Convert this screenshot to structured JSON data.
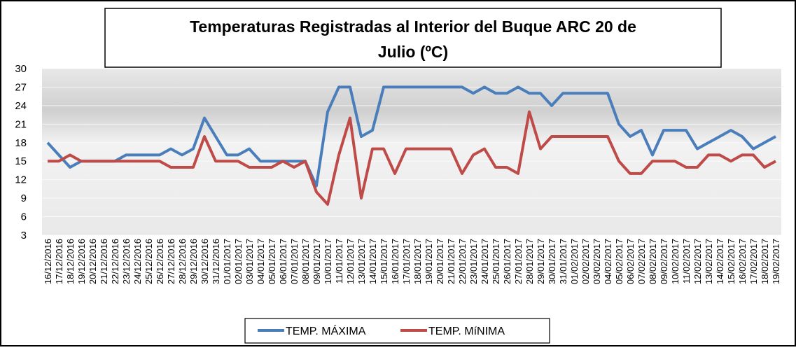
{
  "chart_data": {
    "type": "line",
    "title_lines": [
      "Temperaturas Registradas al Interior del Buque ARC 20 de",
      "Julio (ºC)"
    ],
    "categories": [
      "16/12/2016",
      "17/12/2016",
      "18/12/2016",
      "19/12/2016",
      "20/12/2016",
      "21/12/2016",
      "22/12/2016",
      "23/12/2016",
      "24/12/2016",
      "25/12/2016",
      "26/12/2016",
      "27/12/2016",
      "28/12/2016",
      "29/12/2016",
      "30/12/2016",
      "31/12/2016",
      "01/01/2017",
      "02/01/2017",
      "03/01/2017",
      "04/01/2017",
      "05/01/2017",
      "06/01/2017",
      "07/01/2017",
      "08/01/2017",
      "09/01/2017",
      "10/01/2017",
      "11/01/2017",
      "12/01/2017",
      "13/01/2017",
      "14/01/2017",
      "15/01/2017",
      "16/01/2017",
      "17/01/2017",
      "18/01/2017",
      "19/01/2017",
      "20/01/2017",
      "21/01/2017",
      "22/01/2017",
      "23/01/2017",
      "24/01/2017",
      "25/01/2017",
      "26/01/2017",
      "27/01/2017",
      "28/01/2017",
      "29/01/2017",
      "30/01/2017",
      "31/01/2017",
      "01/02/2017",
      "02/02/2017",
      "03/02/2017",
      "04/02/2017",
      "05/02/2017",
      "06/02/2017",
      "07/02/2017",
      "08/02/2017",
      "09/02/2017",
      "10/02/2017",
      "11/02/2017",
      "12/02/2017",
      "13/02/2017",
      "14/02/2017",
      "15/02/2017",
      "16/02/2017",
      "17/02/2017",
      "18/02/2017",
      "19/02/2017"
    ],
    "series": [
      {
        "name": "TEMP. MÁXIMA",
        "color": "#4a7ebb",
        "values": [
          18,
          16,
          14,
          15,
          15,
          15,
          15,
          16,
          16,
          16,
          16,
          17,
          16,
          17,
          22,
          19,
          16,
          16,
          17,
          15,
          15,
          15,
          15,
          15,
          11,
          23,
          27,
          27,
          19,
          20,
          27,
          27,
          27,
          27,
          27,
          27,
          27,
          27,
          26,
          27,
          26,
          26,
          27,
          26,
          26,
          24,
          26,
          26,
          26,
          26,
          26,
          21,
          19,
          20,
          16,
          20,
          20,
          20,
          17,
          18,
          19,
          20,
          19,
          17,
          18,
          19
        ]
      },
      {
        "name": "TEMP. MíNIMA",
        "color": "#be4b48",
        "values": [
          15,
          15,
          16,
          15,
          15,
          15,
          15,
          15,
          15,
          15,
          15,
          14,
          14,
          14,
          19,
          15,
          15,
          15,
          14,
          14,
          14,
          15,
          14,
          15,
          10,
          8,
          16,
          22,
          9,
          17,
          17,
          13,
          17,
          17,
          17,
          17,
          17,
          13,
          16,
          17,
          14,
          14,
          13,
          23,
          17,
          19,
          19,
          19,
          19,
          19,
          19,
          15,
          13,
          13,
          15,
          15,
          15,
          14,
          14,
          16,
          16,
          15,
          16,
          16,
          14,
          15
        ]
      }
    ],
    "ylim": [
      3,
      30
    ],
    "yticks": [
      3,
      6,
      9,
      12,
      15,
      18,
      21,
      24,
      27,
      30
    ]
  }
}
